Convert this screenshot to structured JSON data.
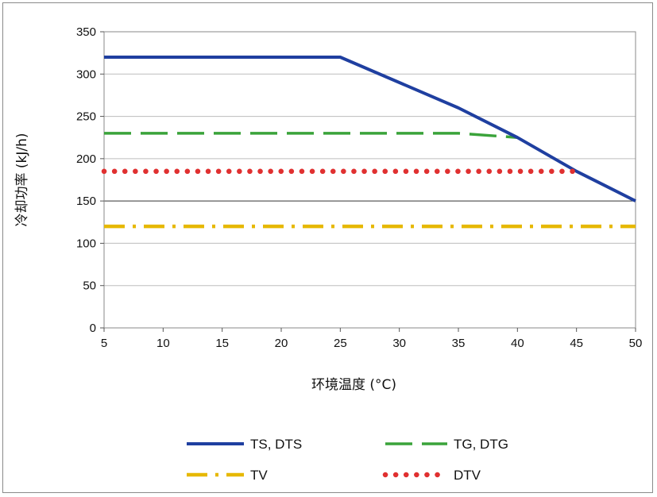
{
  "chart_data": {
    "type": "line",
    "xlabel": "环境温度 (°C)",
    "ylabel": "冷却功率 (kJ/h)",
    "xlim": [
      5,
      50
    ],
    "ylim": [
      0,
      350
    ],
    "xticks": [
      5,
      10,
      15,
      20,
      25,
      30,
      35,
      40,
      45,
      50
    ],
    "yticks": [
      0,
      50,
      100,
      150,
      200,
      250,
      300,
      350
    ],
    "grid": "horizontal",
    "legend_position": "bottom",
    "series": [
      {
        "name": "TS, DTS",
        "color": "#1f3fa0",
        "style": "solid",
        "x": [
          5,
          25,
          35,
          40,
          45,
          50
        ],
        "y": [
          320,
          320,
          260,
          225,
          185,
          150
        ]
      },
      {
        "name": "TG, DTG",
        "color": "#3aa33a",
        "style": "dash",
        "x": [
          5,
          35,
          40
        ],
        "y": [
          230,
          230,
          225
        ]
      },
      {
        "name": "TV",
        "color": "#e6b800",
        "style": "dashdot",
        "x": [
          5,
          50
        ],
        "y": [
          120,
          120
        ]
      },
      {
        "name": "DTV",
        "color": "#e03030",
        "style": "dot",
        "x": [
          5,
          45
        ],
        "y": [
          185,
          185
        ]
      }
    ]
  }
}
